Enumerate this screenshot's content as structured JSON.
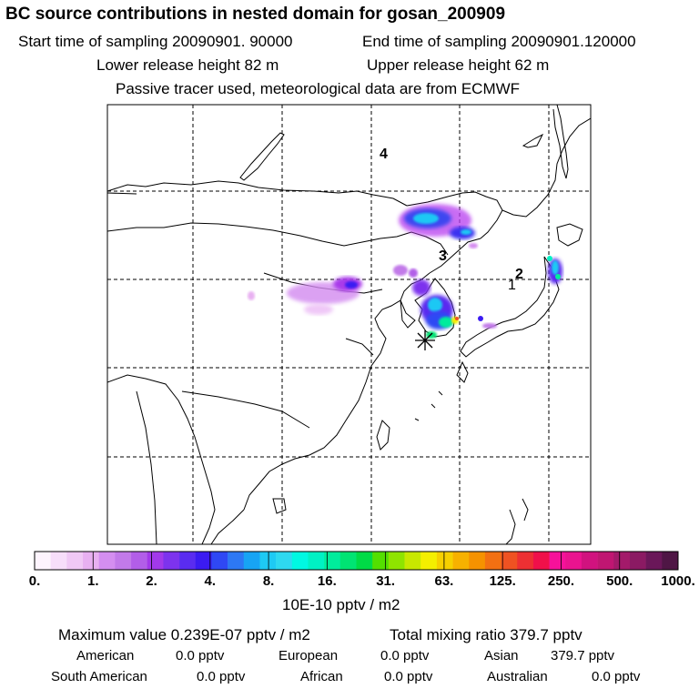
{
  "header": {
    "title": "BC  source contributions in nested domain for gosan_200909",
    "start_time": "Start time of sampling 20090901. 90000",
    "end_time": "End time of sampling 20090901.120000",
    "lower_release": "Lower release height   82 m",
    "upper_release": "Upper release height   62 m",
    "tracer_note": "Passive tracer used, meteorological data are from ECMWF"
  },
  "map": {
    "trajectory_labels": [
      "4",
      "3",
      "2",
      "1"
    ],
    "receptor_marker": "star-marker",
    "grid_lines": "dashed"
  },
  "colorbar": {
    "tick_labels": [
      "0.",
      "1.",
      "2.",
      "4.",
      "8.",
      "16.",
      "31.",
      "63.",
      "125.",
      "250.",
      "500.",
      "1000."
    ],
    "colors": [
      "#fdf4fd",
      "#f7defa",
      "#f0c8f5",
      "#e8b0f1",
      "#d48ef0",
      "#c27ae9",
      "#b25ee8",
      "#a239ea",
      "#7d33ee",
      "#5a2cf0",
      "#3b1bf2",
      "#2f48f4",
      "#2d78f4",
      "#17a4f4",
      "#1ecaf4",
      "#2ed9f0",
      "#00f8e2",
      "#00f1c4",
      "#00ec9c",
      "#00e473",
      "#00db46",
      "#54df00",
      "#8fe400",
      "#c8e800",
      "#f4ef00",
      "#f6d000",
      "#f7b100",
      "#f59200",
      "#f27012",
      "#ef5222",
      "#ed3033",
      "#f0104a",
      "#f6119a",
      "#ea138f",
      "#d1127f",
      "#c01672",
      "#a31a6a",
      "#8b1a63",
      "#6a1759",
      "#4f1645"
    ],
    "unit": "10E-10 pptv / m2"
  },
  "stats": {
    "max_value": "Maximum value  0.239E-07 pptv / m2",
    "total_mixing": "Total mixing ratio      379.7 pptv",
    "american_label": "American",
    "american_value": "0.0 pptv",
    "european_label": "European",
    "european_value": "0.0 pptv",
    "asian_label": "Asian",
    "asian_value": "379.7 pptv",
    "south_american_label": "South American",
    "south_american_value": "0.0 pptv",
    "african_label": "African",
    "african_value": "0.0 pptv",
    "australian_label": "Australian",
    "australian_value": "0.0 pptv"
  }
}
